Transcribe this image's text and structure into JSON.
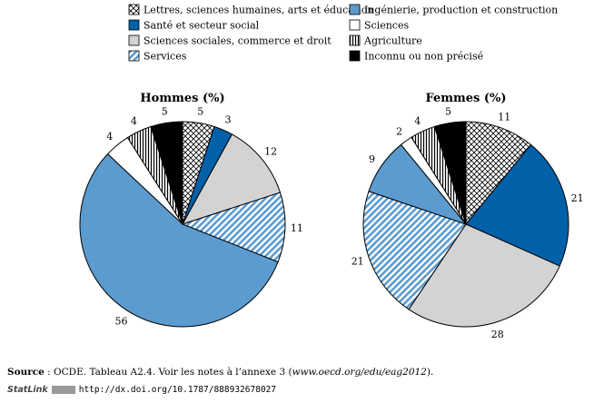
{
  "chart_data": [
    {
      "type": "pie",
      "title": "Hommes (%)",
      "slices": [
        {
          "category": "Lettres, sciences humaines, arts et éducation",
          "value": 5
        },
        {
          "category": "Santé et secteur social",
          "value": 3
        },
        {
          "category": "Sciences sociales, commerce et droit",
          "value": 12
        },
        {
          "category": "Services",
          "value": 11
        },
        {
          "category": "Ingénierie, production et construction",
          "value": 56
        },
        {
          "category": "Sciences",
          "value": 4
        },
        {
          "category": "Agriculture",
          "value": 4
        },
        {
          "category": "Inconnu ou non précisé",
          "value": 5
        }
      ]
    },
    {
      "type": "pie",
      "title": "Femmes (%)",
      "slices": [
        {
          "category": "Lettres, sciences humaines, arts et éducation",
          "value": 11
        },
        {
          "category": "Santé et secteur social",
          "value": 21
        },
        {
          "category": "Sciences sociales, commerce et droit",
          "value": 28
        },
        {
          "category": "Services",
          "value": 21
        },
        {
          "category": "Ingénierie, production et construction",
          "value": 9
        },
        {
          "category": "Sciences",
          "value": 2
        },
        {
          "category": "Agriculture",
          "value": 4
        },
        {
          "category": "Inconnu ou non précisé",
          "value": 5
        }
      ]
    }
  ],
  "legend": {
    "placement": "top",
    "items": [
      {
        "label": "Lettres, sciences humaines, arts et éducation",
        "pattern": "crosshatch",
        "color": "#ffffff"
      },
      {
        "label": "Ingénierie, production et construction",
        "pattern": "solid",
        "color": "#5b9bd0"
      },
      {
        "label": "Santé et secteur social",
        "pattern": "solid",
        "color": "#0060a8"
      },
      {
        "label": "Sciences",
        "pattern": "solid",
        "color": "#ffffff"
      },
      {
        "label": "Sciences sociales, commerce et droit",
        "pattern": "solid",
        "color": "#d3d3d3"
      },
      {
        "label": "Agriculture",
        "pattern": "vertical-lines",
        "color": "#ffffff"
      },
      {
        "label": "Services",
        "pattern": "diagonal-lines",
        "color": "#5b9bd0"
      },
      {
        "label": "Inconnu ou non précisé",
        "pattern": "solid",
        "color": "#000000"
      }
    ]
  },
  "source": {
    "lead": "Source",
    "text": " : OCDE. Tableau A2.4. Voir les notes à l’annexe 3 (",
    "link": "www.oecd.org/edu/eag2012",
    "tail": ")."
  },
  "statlink": {
    "brand": "StatLink",
    "url": "http://dx.doi.org/10.1787/888932678027"
  }
}
